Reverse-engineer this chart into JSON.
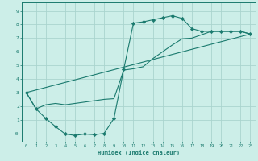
{
  "title": "",
  "xlabel": "Humidex (Indice chaleur)",
  "bg_color": "#cceee8",
  "grid_color": "#aad4ce",
  "line_color": "#1a7a6e",
  "xlim": [
    -0.5,
    23.5
  ],
  "ylim": [
    -0.6,
    9.6
  ],
  "xticks": [
    0,
    1,
    2,
    3,
    4,
    5,
    6,
    7,
    8,
    9,
    10,
    11,
    12,
    13,
    14,
    15,
    16,
    17,
    18,
    19,
    20,
    21,
    22,
    23
  ],
  "yticks": [
    0,
    1,
    2,
    3,
    4,
    5,
    6,
    7,
    8,
    9
  ],
  "ytick_labels": [
    "-0",
    "1",
    "2",
    "3",
    "4",
    "5",
    "6",
    "7",
    "8",
    "9"
  ],
  "curve1_x": [
    0,
    1,
    2,
    3,
    4,
    5,
    6,
    7,
    8,
    9,
    10,
    11,
    12,
    13,
    14,
    15,
    16,
    17,
    18,
    19,
    20,
    21,
    22,
    23
  ],
  "curve1_y": [
    3.0,
    1.8,
    1.1,
    0.5,
    -0.05,
    -0.15,
    -0.05,
    -0.1,
    0.0,
    1.1,
    4.7,
    8.1,
    8.2,
    8.35,
    8.5,
    8.65,
    8.45,
    7.7,
    7.5,
    7.5,
    7.5,
    7.5,
    7.5,
    7.3
  ],
  "curve2_x": [
    0,
    1,
    2,
    3,
    4,
    5,
    6,
    7,
    8,
    9,
    10,
    11,
    12,
    13,
    14,
    15,
    16,
    17,
    18,
    19,
    20,
    21,
    22,
    23
  ],
  "curve2_y": [
    3.0,
    1.8,
    2.1,
    2.2,
    2.1,
    2.2,
    2.3,
    2.4,
    2.5,
    2.55,
    4.65,
    4.75,
    4.9,
    5.5,
    6.0,
    6.5,
    6.95,
    7.0,
    7.25,
    7.5,
    7.5,
    7.5,
    7.5,
    7.3
  ],
  "curve3_x": [
    0,
    23
  ],
  "curve3_y": [
    3.0,
    7.3
  ]
}
